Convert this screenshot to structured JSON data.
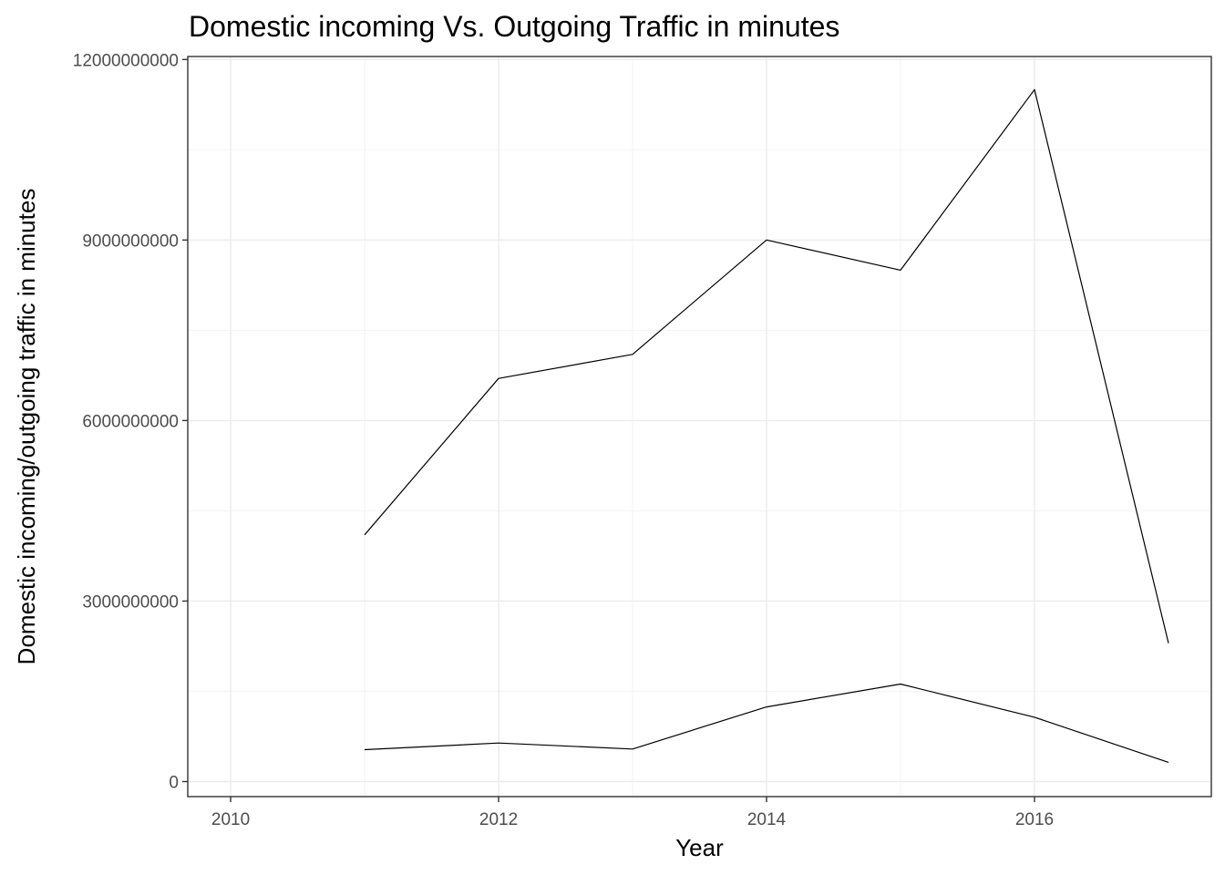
{
  "chart_data": {
    "type": "line",
    "title": "Domestic incoming Vs. Outgoing Traffic in minutes",
    "xlabel": "Year",
    "ylabel": "Domestic incoming/outgoing traffic in minutes",
    "x": [
      2011,
      2012,
      2013,
      2014,
      2015,
      2016,
      2017
    ],
    "series": [
      {
        "values": [
          4100000000,
          6700000000,
          7100000000,
          9000000000,
          8500000000,
          11500000000,
          2300000000
        ]
      },
      {
        "values": [
          530000000,
          640000000,
          540000000,
          1240000000,
          1620000000,
          1070000000,
          320000000
        ]
      }
    ],
    "xlim": [
      2009.68,
      2017.32
    ],
    "ylim": [
      -250000000,
      12050000000
    ],
    "x_ticks": [
      2010,
      2012,
      2014,
      2016
    ],
    "x_tick_labels": [
      "2010",
      "2012",
      "2014",
      "2016"
    ],
    "y_ticks": [
      0,
      3000000000,
      6000000000,
      9000000000,
      12000000000
    ],
    "y_tick_labels": [
      "0",
      "3000000000",
      "6000000000",
      "9000000000",
      "12000000000"
    ],
    "grid": true,
    "legend": "none",
    "colors": {
      "line": "#000000",
      "grid": "#ebebeb",
      "border": "#333333"
    }
  }
}
